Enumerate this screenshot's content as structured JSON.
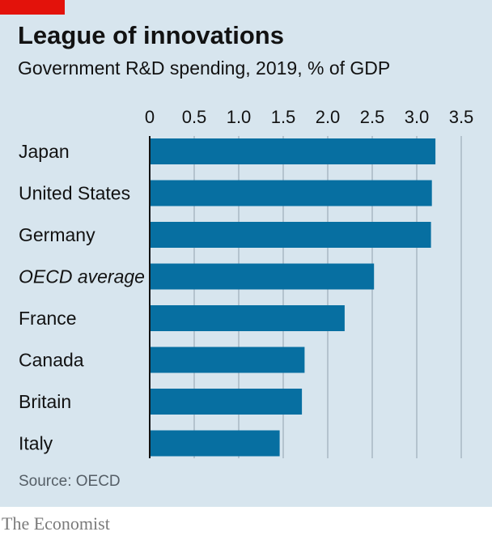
{
  "header": {
    "title": "League of innovations",
    "subtitle": "Government R&D spending, 2019, % of GDP"
  },
  "footer": {
    "source": "Source: OECD",
    "brand": "The Economist"
  },
  "colors": {
    "bar": "#076fa1",
    "background": "#d7e5ee",
    "accent": "#e3120b",
    "gridline": "#a8b8c4"
  },
  "chart_data": {
    "type": "bar",
    "orientation": "horizontal",
    "title": "League of innovations",
    "subtitle": "Government R&D spending, 2019, % of GDP",
    "categories": [
      "Japan",
      "United States",
      "Germany",
      "OECD average",
      "France",
      "Canada",
      "Britain",
      "Italy"
    ],
    "italic_categories": [
      "OECD average"
    ],
    "values": [
      3.21,
      3.17,
      3.16,
      2.52,
      2.19,
      1.74,
      1.71,
      1.46
    ],
    "xlim": [
      0,
      3.5
    ],
    "xticks": [
      "0",
      "0.5",
      "1.0",
      "1.5",
      "2.0",
      "2.5",
      "3.0",
      "3.5"
    ],
    "xtick_values": [
      0,
      0.5,
      1.0,
      1.5,
      2.0,
      2.5,
      3.0,
      3.5
    ],
    "grid": true,
    "legend": "none",
    "source": "Source: OECD"
  }
}
